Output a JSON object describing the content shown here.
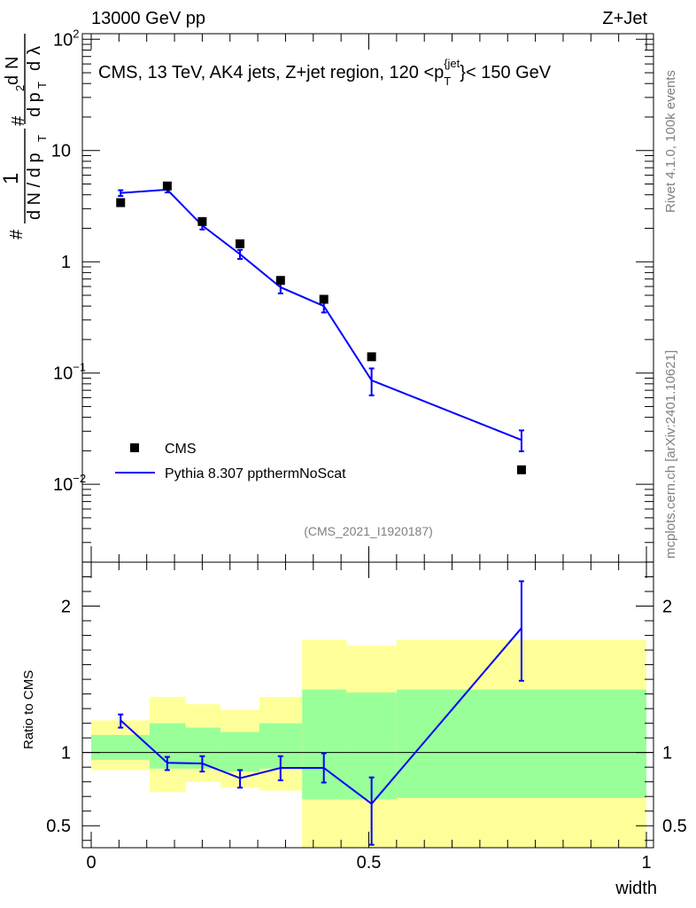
{
  "header": {
    "left": "13000 GeV pp",
    "right": "Z+Jet"
  },
  "side": {
    "rivet": "Rivet 4.1.0,  100k events",
    "mcplots": "mcplots.cern.ch [arXiv:2401.10621]"
  },
  "chart_data": {
    "type": "scatter",
    "title": "CMS, 13 TeV, AK4 jets, Z+jet region, 120 <p_T^{jet}< 150 GeV",
    "title_parts": {
      "main": "CMS, 13 TeV, AK4 jets, Z+jet region, 120 <p",
      "sub": "T",
      "sup": "{jet",
      "tail": "}< 150 GeV"
    },
    "analysis_tag": "(CMS_2021_I1920187)",
    "xlabel": "width",
    "ylabel_main": "1/N dN/dp_T d^2N/dp_T dλ",
    "ylabel_ratio": "Ratio to CMS",
    "xlim": [
      0,
      1
    ],
    "ylim_main_log10": [
      -2.7,
      2.05
    ],
    "ylim_ratio": [
      0.35,
      2.3
    ],
    "x_ticks": [
      "0",
      "0.5",
      "1"
    ],
    "y_ticks_main": [
      {
        "value": 100,
        "base": "10",
        "exp": "2"
      },
      {
        "value": 10,
        "base": "10",
        "exp": ""
      },
      {
        "value": 1,
        "base": "1",
        "exp": ""
      },
      {
        "value": 0.1,
        "base": "10",
        "exp": "−1"
      },
      {
        "value": 0.01,
        "base": "10",
        "exp": "−2"
      }
    ],
    "y_ticks_ratio": [
      {
        "value": 0.5,
        "label": "0.5"
      },
      {
        "value": 1,
        "label": "1"
      },
      {
        "value": 2,
        "label": "2"
      }
    ],
    "bins": [
      0,
      0.105,
      0.17,
      0.233,
      0.303,
      0.38,
      0.46,
      0.55,
      1.0
    ],
    "x": [
      0.053,
      0.137,
      0.2,
      0.268,
      0.341,
      0.419,
      0.505,
      0.775
    ],
    "legend": [
      {
        "name": "CMS",
        "kind": "marker"
      },
      {
        "name": "Pythia 8.307 ppthermNoScat",
        "kind": "line"
      }
    ],
    "series": [
      {
        "name": "CMS",
        "color": "#000000",
        "values": [
          3.4,
          4.8,
          2.3,
          1.45,
          0.68,
          0.46,
          0.14,
          0.0135
        ]
      },
      {
        "name": "Pythia 8.307 ppthermNoScat",
        "color": "#0000ff",
        "values": [
          4.15,
          4.45,
          2.12,
          1.17,
          0.59,
          0.4,
          0.086,
          0.025
        ],
        "err_up": [
          4.4,
          4.7,
          2.3,
          1.28,
          0.66,
          0.45,
          0.11,
          0.0305
        ],
        "err_down": [
          3.9,
          4.2,
          1.95,
          1.06,
          0.52,
          0.35,
          0.063,
          0.0198
        ]
      }
    ],
    "ratio": {
      "values": [
        1.22,
        0.93,
        0.925,
        0.825,
        0.895,
        0.895,
        0.65,
        1.85
      ],
      "err_up": [
        1.26,
        0.97,
        0.975,
        0.88,
        0.975,
        0.995,
        0.83,
        2.17
      ],
      "err_down": [
        1.17,
        0.88,
        0.87,
        0.76,
        0.81,
        0.795,
        0.37,
        1.49
      ],
      "green_band": [
        [
          0.95,
          1.12
        ],
        [
          0.89,
          1.2
        ],
        [
          0.89,
          1.17
        ],
        [
          0.87,
          1.14
        ],
        [
          0.89,
          1.2
        ],
        [
          0.68,
          1.43
        ],
        [
          0.68,
          1.41
        ],
        [
          0.69,
          1.43
        ]
      ],
      "yellow_band": [
        [
          0.88,
          1.22
        ],
        [
          0.73,
          1.38
        ],
        [
          0.8,
          1.33
        ],
        [
          0.76,
          1.29
        ],
        [
          0.74,
          1.38
        ],
        [
          0.35,
          1.77
        ],
        [
          0.35,
          1.73
        ],
        [
          0.35,
          1.77
        ]
      ],
      "green_color": "#99ff99",
      "yellow_color": "#ffff99"
    }
  }
}
